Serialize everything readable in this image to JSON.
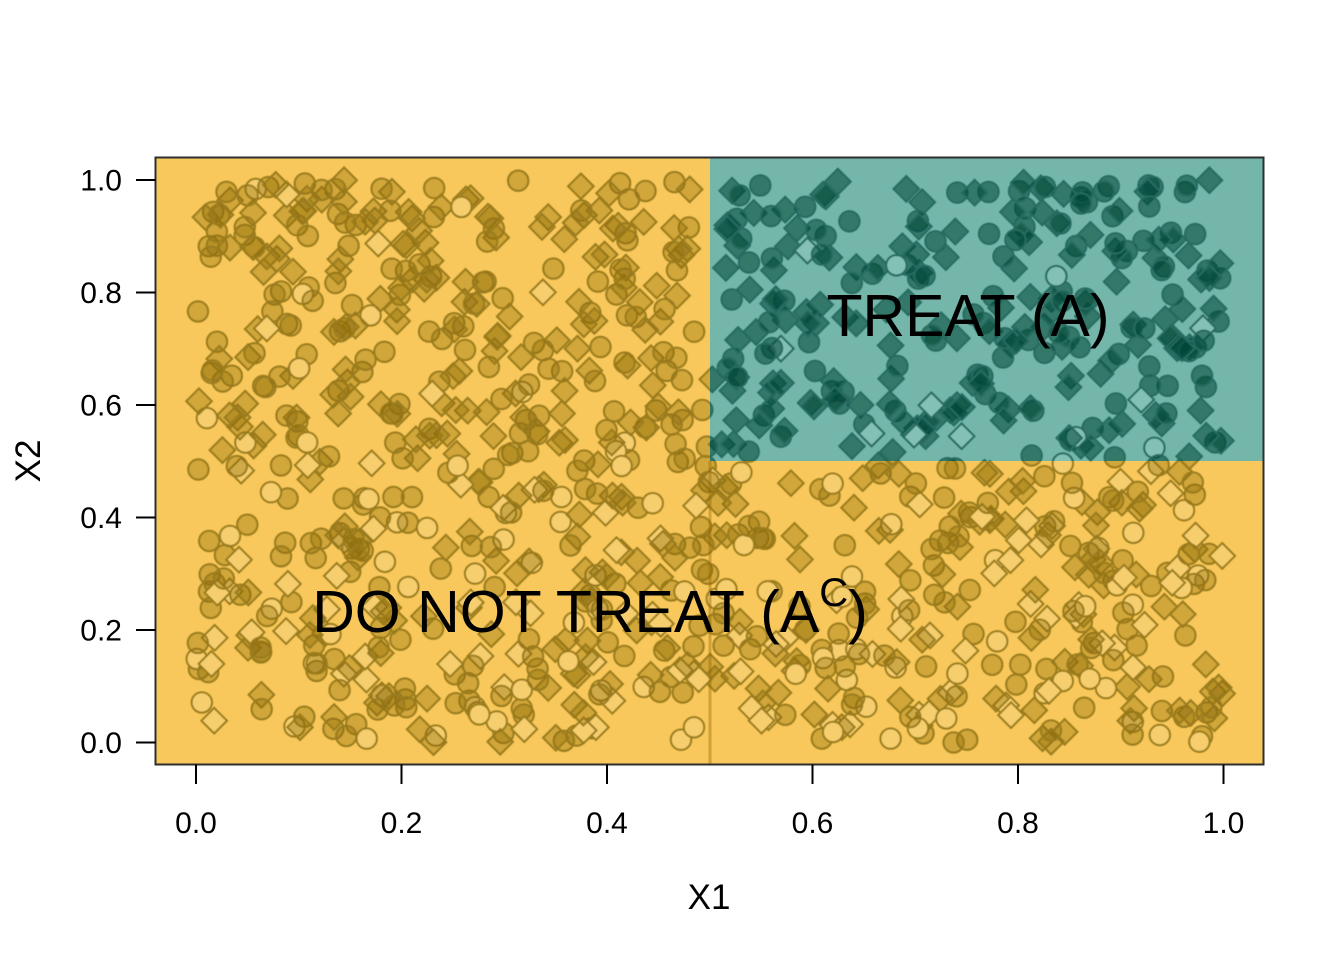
{
  "chart_data": {
    "type": "scatter",
    "title": "",
    "xlabel": "X1",
    "ylabel": "X2",
    "xticks": [
      "0.0",
      "0.2",
      "0.4",
      "0.6",
      "0.8",
      "1.0"
    ],
    "yticks": [
      "0.0",
      "0.2",
      "0.4",
      "0.6",
      "0.8",
      "1.0"
    ],
    "xtick_values": [
      0.0,
      0.2,
      0.4,
      0.6,
      0.8,
      1.0
    ],
    "ytick_values": [
      0.0,
      0.2,
      0.4,
      0.6,
      0.8,
      1.0
    ],
    "xlim": [
      0,
      1
    ],
    "ylim": [
      0,
      1
    ],
    "axis_expansion": 0.04,
    "grid": false,
    "legend": false,
    "regions": [
      {
        "name": "do-not-treat",
        "label_parts": {
          "main": "DO NOT TREAT (A",
          "sup": "C",
          "close": ")"
        },
        "shape": "L-shape (all except x>0.5 & y>0.5)",
        "x": [
          0,
          1
        ],
        "y": [
          0,
          1
        ],
        "fill": "#F8C85C",
        "label_pos": [
          0.383,
          0.234
        ],
        "point_fill": "rgba(140,109,10,0.37)",
        "point_open_fill": "#F6CE6E",
        "point_stroke": "#9A7B1C"
      },
      {
        "name": "treat",
        "label": "TREAT (A)",
        "shape": "rect",
        "x": [
          0.5,
          1
        ],
        "y": [
          0.5,
          1
        ],
        "fill": "#74B7AA",
        "label_pos": [
          0.751,
          0.758
        ],
        "point_fill": "rgba(0,70,55,0.55)",
        "point_open_fill": "#84C1B5",
        "point_stroke": "#256B5E"
      }
    ],
    "boundary_line": {
      "x": 0.5,
      "y_from": 0.0,
      "y_to": 0.5,
      "color": "rgba(150,100,0,0.4)"
    },
    "points": {
      "n": 1100,
      "distribution": "uniform on [0,1] x [0,1]",
      "seed": 11,
      "shapes": [
        "circle",
        "diamond"
      ],
      "shape_prob": 0.5,
      "open_prob_rule": "clamp(0.5 - 0.65*y, 0.02, 0.5)"
    }
  }
}
